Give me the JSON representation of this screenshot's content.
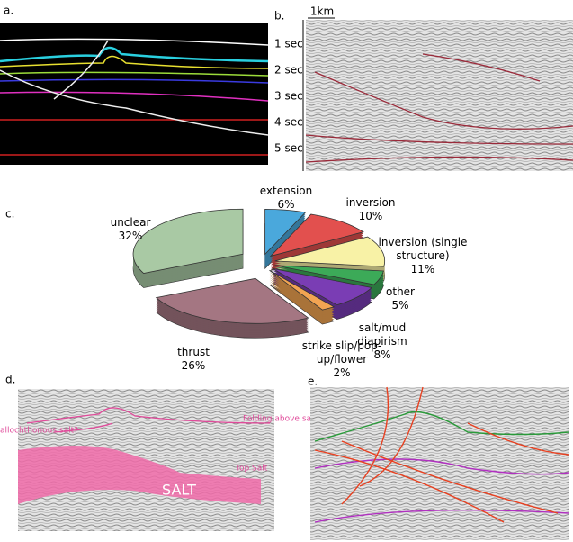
{
  "chart_data": {
    "type": "pie",
    "categories": [
      "extension",
      "inversion",
      "inversion (single structure)",
      "other",
      "salt/mud diapirism",
      "strike slip/pop-up/flower",
      "thrust",
      "unclear"
    ],
    "values": [
      6,
      10,
      11,
      5,
      8,
      2,
      26,
      32
    ],
    "value_labels": [
      "6%",
      "10%",
      "11%",
      "5%",
      "8%",
      "2%",
      "26%",
      "32%"
    ],
    "colors": [
      "#4aa8dc",
      "#e2504e",
      "#f8f2a6",
      "#3caa58",
      "#7a3db4",
      "#f2a452",
      "#a47682",
      "#a9c9a4"
    ]
  },
  "panels": {
    "a": {
      "label": "a.",
      "ticks": [
        "1 sec",
        "2 sec",
        "3 sec",
        "4 sec",
        "5 sec"
      ]
    },
    "b": {
      "label": "b.",
      "scale": "1km"
    },
    "c": {
      "label": "c."
    },
    "d": {
      "label": "d.",
      "annotations": [
        "allochthonous salt?",
        "Folding above salt dome",
        "Top Salt",
        "SALT"
      ]
    },
    "e": {
      "label": "e."
    }
  }
}
